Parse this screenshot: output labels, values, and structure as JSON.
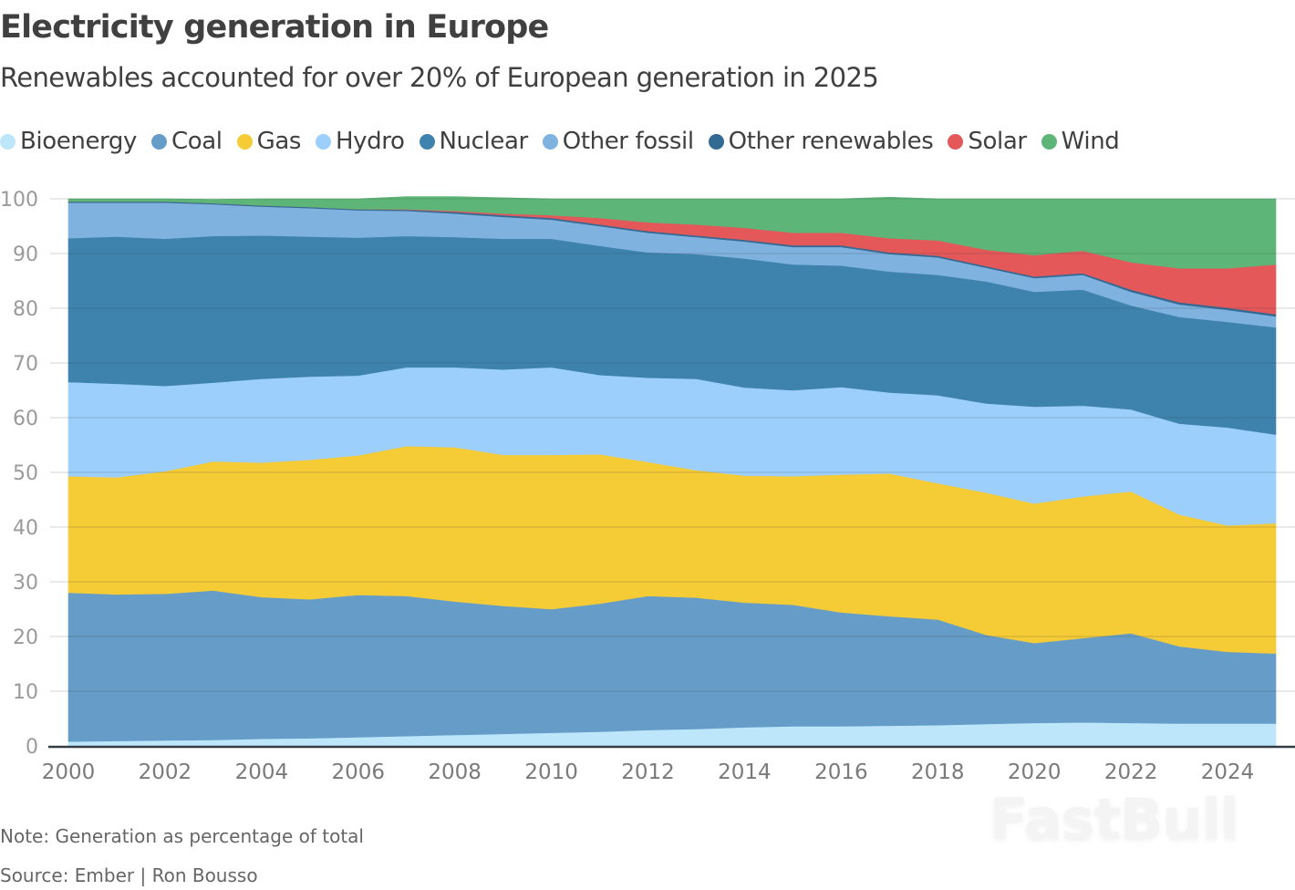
{
  "header": {
    "title": "Electricity generation in Europe",
    "subtitle": "Renewables accounted for over 20% of European generation in 2025"
  },
  "footer": {
    "note": "Note: Generation as percentage of total",
    "source": "Source: Ember | Ron Bousso",
    "watermark": "FastBull"
  },
  "chart_data": {
    "type": "area",
    "stacked": true,
    "title": "Electricity generation in Europe",
    "subtitle": "Renewables accounted for over 20% of European generation in 2025",
    "xlabel": "",
    "ylabel": "",
    "ylim": [
      0,
      100
    ],
    "xlim": [
      2000,
      2025
    ],
    "grid": true,
    "legend_position": "top-left",
    "yticks": [
      0,
      10,
      20,
      30,
      40,
      50,
      60,
      70,
      80,
      90,
      100
    ],
    "xticks": [
      2000,
      2002,
      2004,
      2006,
      2008,
      2010,
      2012,
      2014,
      2016,
      2018,
      2020,
      2022,
      2024
    ],
    "x": [
      2000,
      2001,
      2002,
      2003,
      2004,
      2005,
      2006,
      2007,
      2008,
      2009,
      2010,
      2011,
      2012,
      2013,
      2014,
      2015,
      2016,
      2017,
      2018,
      2019,
      2020,
      2021,
      2022,
      2023,
      2024,
      2025
    ],
    "series": [
      {
        "name": "Bioenergy",
        "color": "#bde6fb",
        "values": [
          0.8,
          0.9,
          1.0,
          1.1,
          1.3,
          1.4,
          1.6,
          1.8,
          2.0,
          2.2,
          2.4,
          2.6,
          2.9,
          3.1,
          3.4,
          3.6,
          3.6,
          3.7,
          3.8,
          4.0,
          4.2,
          4.3,
          4.2,
          4.1,
          4.1,
          4.1
        ]
      },
      {
        "name": "Coal",
        "color": "#659dc8",
        "values": [
          27.2,
          26.8,
          26.8,
          27.3,
          25.9,
          25.4,
          26.0,
          25.6,
          24.4,
          23.4,
          22.6,
          23.4,
          24.5,
          24.0,
          22.8,
          22.2,
          20.8,
          20.0,
          19.3,
          16.3,
          14.6,
          15.4,
          16.4,
          14.1,
          13.1,
          12.8
        ]
      },
      {
        "name": "Gas",
        "color": "#f5cb36",
        "values": [
          21.3,
          21.4,
          22.4,
          23.6,
          24.6,
          25.5,
          25.5,
          27.4,
          28.2,
          27.6,
          28.2,
          27.3,
          24.5,
          23.3,
          23.2,
          23.5,
          25.2,
          26.1,
          24.9,
          26.0,
          25.5,
          25.9,
          25.9,
          24.1,
          23.1,
          23.8
        ]
      },
      {
        "name": "Hydro",
        "color": "#9ccffb",
        "values": [
          17.2,
          17.1,
          15.6,
          14.4,
          15.3,
          15.2,
          14.6,
          14.4,
          14.6,
          15.6,
          16.0,
          14.5,
          15.4,
          16.7,
          16.1,
          15.7,
          16.0,
          14.8,
          16.1,
          16.3,
          17.7,
          16.6,
          15.0,
          16.6,
          17.9,
          16.2
        ]
      },
      {
        "name": "Nuclear",
        "color": "#3e83ae",
        "values": [
          26.3,
          26.9,
          26.9,
          26.8,
          26.2,
          25.6,
          25.2,
          24.0,
          23.8,
          23.9,
          23.5,
          23.6,
          22.9,
          22.8,
          23.6,
          23.0,
          22.2,
          22.1,
          22.0,
          22.3,
          21.0,
          21.2,
          19.0,
          19.5,
          19.3,
          19.6
        ]
      },
      {
        "name": "Other fossil",
        "color": "#7fb2de",
        "values": [
          6.5,
          6.2,
          6.6,
          5.8,
          5.3,
          5.2,
          5.0,
          4.6,
          4.3,
          4.0,
          3.5,
          3.6,
          3.6,
          3.1,
          3.1,
          3.2,
          3.4,
          3.2,
          3.2,
          2.5,
          2.5,
          2.7,
          2.5,
          2.3,
          2.2,
          2.0
        ]
      },
      {
        "name": "Other renewables",
        "color": "#336a94",
        "values": [
          0.2,
          0.2,
          0.2,
          0.2,
          0.2,
          0.2,
          0.2,
          0.2,
          0.3,
          0.3,
          0.3,
          0.3,
          0.3,
          0.3,
          0.3,
          0.3,
          0.3,
          0.3,
          0.3,
          0.3,
          0.3,
          0.3,
          0.4,
          0.4,
          0.4,
          0.4
        ]
      },
      {
        "name": "Solar",
        "color": "#e4585a",
        "values": [
          0.0,
          0.0,
          0.0,
          0.0,
          0.0,
          0.0,
          0.0,
          0.1,
          0.2,
          0.3,
          0.5,
          1.2,
          1.6,
          2.0,
          2.2,
          2.3,
          2.3,
          2.6,
          2.8,
          3.0,
          3.9,
          4.1,
          5.0,
          6.2,
          7.2,
          9.1
        ]
      },
      {
        "name": "Wind",
        "color": "#5db678",
        "values": [
          0.5,
          0.5,
          0.5,
          0.7,
          1.2,
          1.5,
          1.9,
          2.3,
          2.6,
          2.9,
          3.0,
          3.5,
          4.3,
          4.7,
          5.3,
          6.2,
          6.2,
          7.5,
          7.6,
          9.3,
          10.3,
          9.5,
          11.6,
          12.7,
          12.7,
          12.0
        ]
      }
    ]
  }
}
